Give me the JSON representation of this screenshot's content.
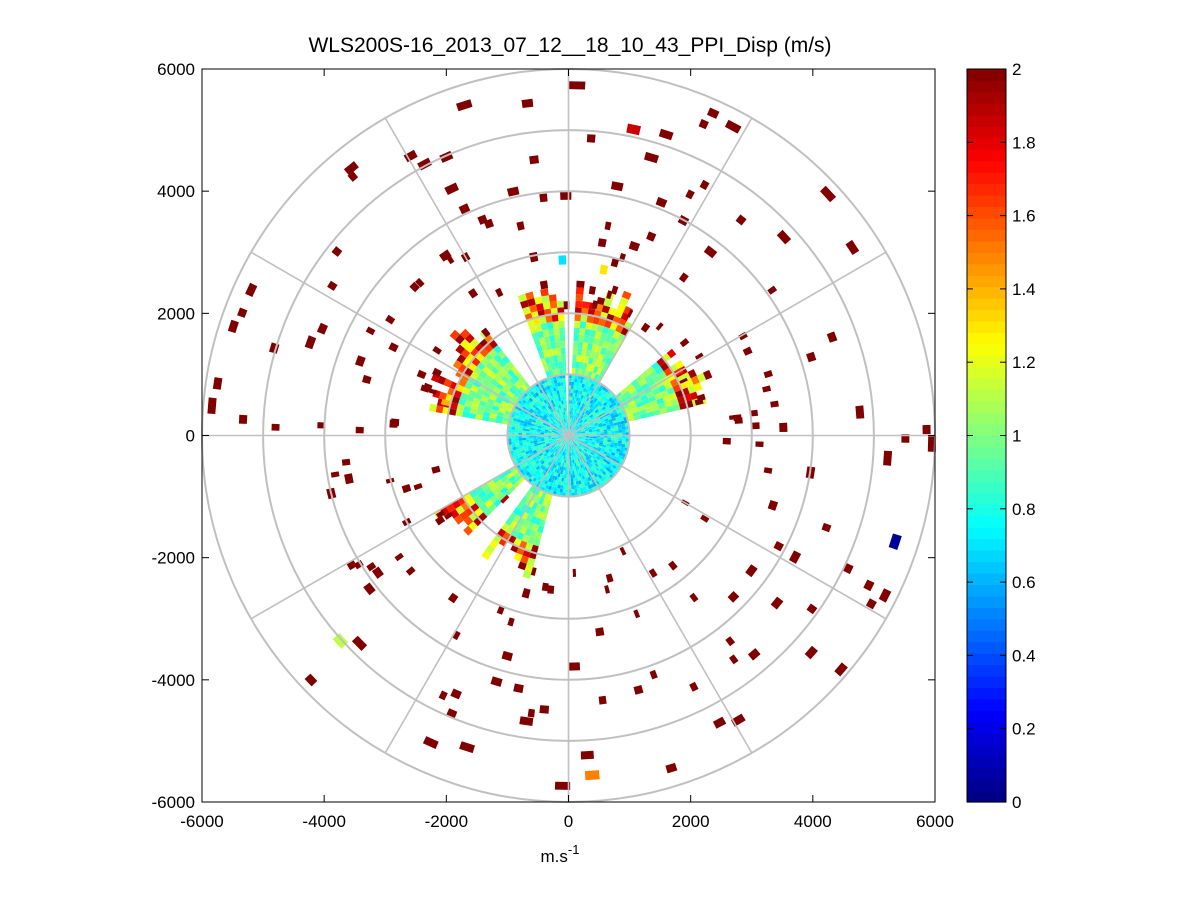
{
  "chart_data": {
    "type": "heatmap",
    "subtype": "polar-ppi-scan",
    "title": "WLS200S-16_2013_07_12__18_10_43_PPI_Disp (m/s)",
    "xlabel": "m.s",
    "xlabel_superscript": "-1",
    "ylabel": "",
    "xlim": [
      -6000,
      6000
    ],
    "ylim": [
      -6000,
      6000
    ],
    "x_ticks": [
      -6000,
      -4000,
      -2000,
      0,
      2000,
      4000,
      6000
    ],
    "y_ticks": [
      -6000,
      -4000,
      -2000,
      0,
      2000,
      4000,
      6000
    ],
    "x_tick_labels": [
      "-6000",
      "-4000",
      "-2000",
      "0",
      "2000",
      "4000",
      "6000"
    ],
    "y_tick_labels": [
      "-6000",
      "-4000",
      "-2000",
      "0",
      "2000",
      "4000",
      "6000"
    ],
    "polar_grid": {
      "range_rings_m": [
        1000,
        2000,
        3000,
        4000,
        5000,
        6000
      ],
      "spoke_angles_deg": [
        0,
        30,
        60,
        90,
        120,
        150,
        180,
        210,
        240,
        270,
        300,
        330
      ]
    },
    "colorbar": {
      "colormap": "jet",
      "clim": [
        0,
        2
      ],
      "ticks": [
        0,
        0.2,
        0.4,
        0.6,
        0.8,
        1,
        1.2,
        1.4,
        1.6,
        1.8,
        2
      ],
      "tick_labels": [
        "0",
        "0.2",
        "0.4",
        "0.6",
        "0.8",
        "1",
        "1.2",
        "1.4",
        "1.6",
        "1.8",
        "2"
      ]
    },
    "field_summary": {
      "inner_core_range_m": [
        0,
        1000
      ],
      "inner_core_value": 0.75,
      "mid_sector_range_m": [
        1000,
        2650
      ],
      "mid_sector_values": [
        0.8,
        1.3,
        1.7,
        2.0
      ],
      "outer_range_m": [
        2000,
        6000
      ],
      "outer_sparse_value": 2.0,
      "blanked_sector_deg": [
        -5,
        0
      ]
    },
    "samples": [
      {
        "r": 5050,
        "az": 12,
        "v": 1.85
      },
      {
        "r": 5550,
        "az": 108,
        "v": 0.05
      },
      {
        "r": 5500,
        "az": 176,
        "v": 1.5
      },
      {
        "r": 4950,
        "az": 228,
        "v": 1.12
      },
      {
        "r": 2900,
        "az": 349,
        "v": 2.0
      },
      {
        "r": 2800,
        "az": 358,
        "v": 0.7
      },
      {
        "r": 2700,
        "az": 12,
        "v": 1.3
      },
      {
        "r": 2000,
        "az": 60,
        "v": 1.7
      },
      {
        "r": 2000,
        "az": 285,
        "v": 1.4
      },
      {
        "r": 2600,
        "az": 195,
        "v": 2.0
      },
      {
        "r": 1400,
        "az": 225,
        "v": 1.9
      }
    ]
  }
}
